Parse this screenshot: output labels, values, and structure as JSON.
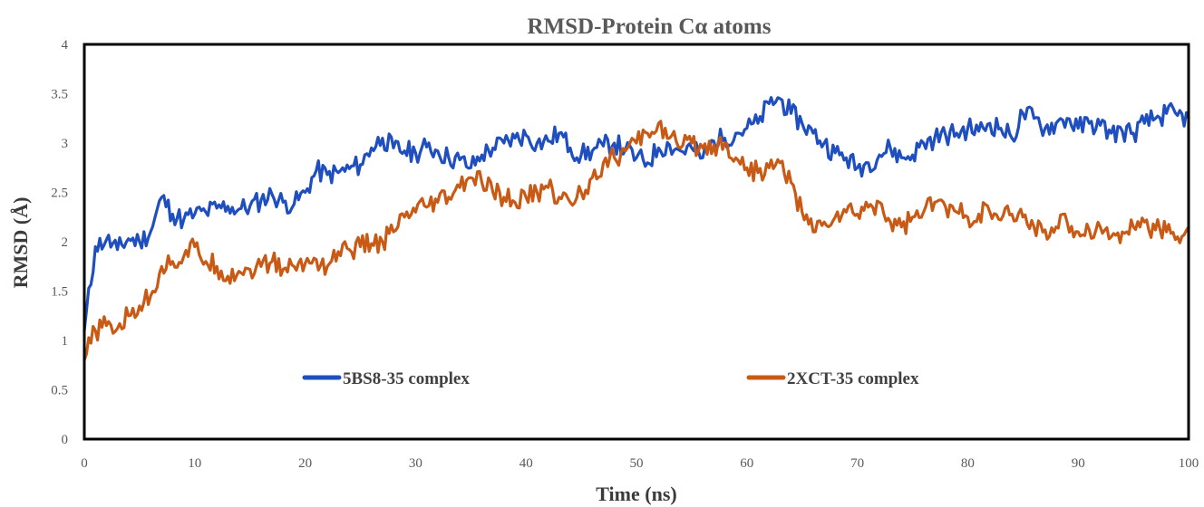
{
  "chart_data": {
    "type": "line",
    "title": "RMSD-Protein Cα atoms",
    "xlabel": "Time (ns)",
    "ylabel": "RMSD (Å)",
    "xlim": [
      0,
      100
    ],
    "ylim": [
      0,
      4
    ],
    "x_ticks": [
      "0",
      "10",
      "20",
      "30",
      "40",
      "50",
      "60",
      "70",
      "80",
      "90",
      "100"
    ],
    "y_ticks": [
      "0",
      "0.5",
      "1",
      "1.5",
      "2",
      "2.5",
      "3",
      "3.5",
      "4"
    ],
    "grid": false,
    "legend_position": "inside-bottom",
    "x": [
      0,
      1,
      2,
      3,
      4,
      5,
      6,
      7,
      8,
      9,
      10,
      11,
      12,
      13,
      14,
      15,
      16,
      17,
      18,
      19,
      20,
      21,
      22,
      23,
      24,
      25,
      26,
      27,
      28,
      29,
      30,
      31,
      32,
      33,
      34,
      35,
      36,
      37,
      38,
      39,
      40,
      41,
      42,
      43,
      44,
      45,
      46,
      47,
      48,
      49,
      50,
      51,
      52,
      53,
      54,
      55,
      56,
      57,
      58,
      59,
      60,
      61,
      62,
      63,
      64,
      65,
      66,
      67,
      68,
      69,
      70,
      71,
      72,
      73,
      74,
      75,
      76,
      77,
      78,
      79,
      80,
      81,
      82,
      83,
      84,
      85,
      86,
      87,
      88,
      89,
      90,
      91,
      92,
      93,
      94,
      95,
      96,
      97,
      98,
      99,
      100
    ],
    "series": [
      {
        "name": "5BS8-35 complex",
        "color": "#1f4fbf",
        "values": [
          1.1,
          1.95,
          2.02,
          1.92,
          2.03,
          2.0,
          2.1,
          2.45,
          2.28,
          2.22,
          2.28,
          2.3,
          2.34,
          2.36,
          2.33,
          2.36,
          2.42,
          2.48,
          2.4,
          2.38,
          2.5,
          2.72,
          2.68,
          2.7,
          2.74,
          2.78,
          2.95,
          3.05,
          2.95,
          2.92,
          2.9,
          2.96,
          2.92,
          2.85,
          2.83,
          2.75,
          2.88,
          2.95,
          3.0,
          3.05,
          3.08,
          3.0,
          3.02,
          3.1,
          2.95,
          2.88,
          2.92,
          2.97,
          3.0,
          2.93,
          2.85,
          2.8,
          2.95,
          2.98,
          2.92,
          2.95,
          2.85,
          3.02,
          3.05,
          3.1,
          3.15,
          3.2,
          3.4,
          3.45,
          3.3,
          3.2,
          3.1,
          3.0,
          2.9,
          2.85,
          2.75,
          2.8,
          2.88,
          2.95,
          2.85,
          2.88,
          3.0,
          3.05,
          3.08,
          3.1,
          3.15,
          3.12,
          3.2,
          3.15,
          3.05,
          3.3,
          3.25,
          3.15,
          3.2,
          3.25,
          3.15,
          3.2,
          3.18,
          3.1,
          3.12,
          3.1,
          3.2,
          3.25,
          3.3,
          3.28,
          3.25
        ]
      },
      {
        "name": "2XCT-35 complex",
        "color": "#c85a16",
        "values": [
          0.8,
          1.1,
          1.15,
          1.12,
          1.25,
          1.35,
          1.45,
          1.75,
          1.8,
          1.85,
          1.95,
          1.8,
          1.75,
          1.65,
          1.7,
          1.72,
          1.75,
          1.8,
          1.72,
          1.75,
          1.78,
          1.82,
          1.75,
          1.9,
          1.92,
          1.95,
          1.98,
          2.0,
          2.1,
          2.25,
          2.3,
          2.35,
          2.4,
          2.45,
          2.55,
          2.65,
          2.6,
          2.5,
          2.45,
          2.4,
          2.45,
          2.5,
          2.55,
          2.45,
          2.4,
          2.5,
          2.65,
          2.8,
          2.85,
          2.92,
          3.0,
          3.1,
          3.2,
          3.05,
          2.95,
          3.0,
          2.95,
          2.98,
          3.0,
          2.85,
          2.75,
          2.7,
          2.75,
          2.8,
          2.6,
          2.3,
          2.1,
          2.2,
          2.25,
          2.3,
          2.28,
          2.35,
          2.4,
          2.2,
          2.15,
          2.25,
          2.3,
          2.4,
          2.35,
          2.3,
          2.25,
          2.28,
          2.3,
          2.22,
          2.28,
          2.25,
          2.15,
          2.12,
          2.15,
          2.2,
          2.1,
          2.12,
          2.15,
          2.05,
          2.1,
          2.15,
          2.2,
          2.12,
          2.1,
          2.05,
          2.15
        ]
      }
    ]
  }
}
